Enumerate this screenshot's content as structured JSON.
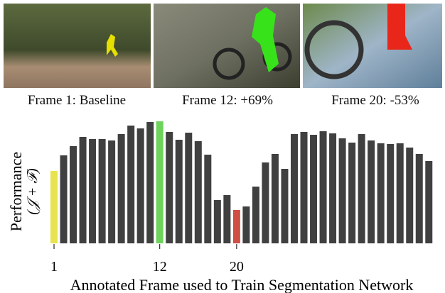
{
  "images": [
    {
      "caption": "Frame 1: Baseline"
    },
    {
      "caption": "Frame 12: +69%"
    },
    {
      "caption": "Frame 20: -53%"
    }
  ],
  "chart_data": {
    "type": "bar",
    "ylabel": [
      "Performance",
      "(𝒥 + ℱ)"
    ],
    "xlabel": "Annotated Frame used to Train Segmentation Network",
    "categories": [
      "1",
      null,
      null,
      null,
      null,
      null,
      null,
      null,
      null,
      null,
      null,
      "12",
      null,
      null,
      null,
      null,
      null,
      null,
      null,
      "20",
      null,
      null,
      null,
      null,
      null,
      null,
      null,
      null,
      null,
      null,
      null,
      null,
      null,
      null,
      null,
      null,
      null,
      null,
      null,
      null
    ],
    "values": [
      102,
      124,
      137,
      150,
      147,
      147,
      145,
      154,
      166,
      162,
      171,
      172,
      157,
      146,
      156,
      144,
      125,
      61,
      68,
      47,
      52,
      80,
      114,
      126,
      105,
      154,
      157,
      153,
      158,
      155,
      148,
      142,
      154,
      145,
      141,
      140,
      141,
      135,
      126,
      116
    ],
    "colors": [
      "#e8e44f",
      "#404040",
      "#404040",
      "#404040",
      "#404040",
      "#404040",
      "#404040",
      "#404040",
      "#404040",
      "#404040",
      "#404040",
      "#6dd35a",
      "#404040",
      "#404040",
      "#404040",
      "#404040",
      "#404040",
      "#404040",
      "#404040",
      "#cf4f45",
      "#404040",
      "#404040",
      "#404040",
      "#404040",
      "#404040",
      "#404040",
      "#404040",
      "#404040",
      "#404040",
      "#404040",
      "#404040",
      "#404040",
      "#404040",
      "#404040",
      "#404040",
      "#404040",
      "#404040",
      "#404040",
      "#404040",
      "#404040"
    ],
    "ylim": [
      0,
      175
    ]
  }
}
